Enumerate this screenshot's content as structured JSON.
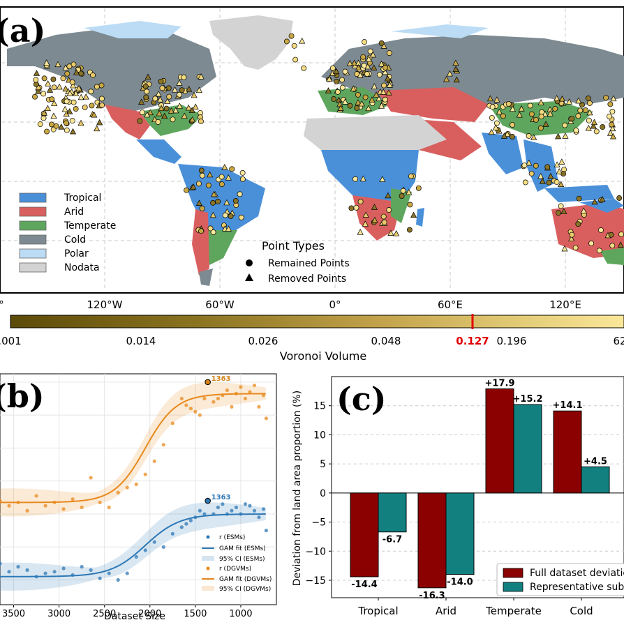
{
  "panel_a": {
    "label": "(a)",
    "legend_classes": [
      {
        "name": "Tropical",
        "color": "#4a90d9"
      },
      {
        "name": "Arid",
        "color": "#d95f5f"
      },
      {
        "name": "Temperate",
        "color": "#5ea65e"
      },
      {
        "name": "Cold",
        "color": "#7d8a91"
      },
      {
        "name": "Polar",
        "color": "#bcdcf5"
      },
      {
        "name": "Nodata",
        "color": "#d3d3d3"
      }
    ],
    "point_types_title": "Point Types",
    "point_types": [
      "Remained Points",
      "Removed Points"
    ],
    "lon_ticks": [
      "°",
      "120°W",
      "60°W",
      "0°",
      "60°E",
      "120°E"
    ],
    "colorbar_ticks": [
      ".001",
      "0.014",
      "0.026",
      "0.048",
      "0.196",
      "62"
    ],
    "colorbar_highlight": "0.127",
    "colorbar_label": "Voronoi Volume"
  },
  "chart_data": [
    {
      "type": "line",
      "panel": "(b)",
      "xlabel": "Dataset Size",
      "x_ticks": [
        3500,
        3000,
        2500,
        2000,
        1500,
        1000
      ],
      "xlim": [
        3650,
        700
      ],
      "series": [
        {
          "name": "r (DGVMs)",
          "color": "#e8891c",
          "points": [
            [
              3650,
              0.28
            ],
            [
              3550,
              0.25
            ],
            [
              3450,
              0.27
            ],
            [
              3350,
              0.22
            ],
            [
              3250,
              0.31
            ],
            [
              3150,
              0.25
            ],
            [
              3050,
              0.27
            ],
            [
              2950,
              0.23
            ],
            [
              2850,
              0.29
            ],
            [
              2750,
              0.24
            ],
            [
              2650,
              0.42
            ],
            [
              2550,
              0.27
            ],
            [
              2450,
              0.24
            ],
            [
              2350,
              0.33
            ],
            [
              2250,
              0.36
            ],
            [
              2150,
              0.38
            ],
            [
              2050,
              0.44
            ],
            [
              1950,
              0.52
            ],
            [
              1850,
              0.62
            ],
            [
              1750,
              0.75
            ],
            [
              1650,
              0.9
            ],
            [
              1600,
              0.86
            ],
            [
              1550,
              0.84
            ],
            [
              1500,
              0.82
            ],
            [
              1450,
              0.8
            ],
            [
              1400,
              0.9
            ],
            [
              1363,
              1.0
            ],
            [
              1300,
              0.88
            ],
            [
              1250,
              0.9
            ],
            [
              1200,
              0.92
            ],
            [
              1150,
              0.95
            ],
            [
              1100,
              0.85
            ],
            [
              1050,
              0.93
            ],
            [
              1000,
              0.97
            ],
            [
              950,
              0.9
            ],
            [
              900,
              0.94
            ],
            [
              850,
              0.98
            ],
            [
              800,
              0.85
            ],
            [
              750,
              0.92
            ],
            [
              720,
              0.78
            ]
          ]
        },
        {
          "name": "r (ESMs)",
          "color": "#2e78b5",
          "points": [
            [
              3650,
              -0.1
            ],
            [
              3550,
              -0.15
            ],
            [
              3450,
              -0.12
            ],
            [
              3350,
              -0.14
            ],
            [
              3250,
              -0.18
            ],
            [
              3150,
              -0.16
            ],
            [
              3050,
              -0.15
            ],
            [
              2950,
              -0.13
            ],
            [
              2850,
              -0.17
            ],
            [
              2750,
              -0.12
            ],
            [
              2650,
              -0.14
            ],
            [
              2550,
              -0.19
            ],
            [
              2450,
              -0.16
            ],
            [
              2350,
              -0.2
            ],
            [
              2250,
              -0.16
            ],
            [
              2150,
              -0.06
            ],
            [
              2050,
              -0.02
            ],
            [
              1950,
              0.03
            ],
            [
              1850,
              0.0
            ],
            [
              1750,
              0.08
            ],
            [
              1650,
              0.12
            ],
            [
              1600,
              0.14
            ],
            [
              1550,
              0.16
            ],
            [
              1500,
              0.18
            ],
            [
              1450,
              0.22
            ],
            [
              1400,
              0.2
            ],
            [
              1363,
              0.28
            ],
            [
              1300,
              0.2
            ],
            [
              1250,
              0.24
            ],
            [
              1200,
              0.26
            ],
            [
              1150,
              0.2
            ],
            [
              1100,
              0.22
            ],
            [
              1050,
              0.24
            ],
            [
              1000,
              0.2
            ],
            [
              950,
              0.26
            ],
            [
              900,
              0.25
            ],
            [
              850,
              0.22
            ],
            [
              800,
              0.18
            ],
            [
              750,
              0.23
            ],
            [
              720,
              0.1
            ]
          ]
        }
      ],
      "fits": [
        {
          "name": "GAM fit (DGVMs)",
          "color": "#e8891c",
          "low": 0.27,
          "high": 0.93,
          "mid": 2050,
          "width": 170
        },
        {
          "name": "GAM fit (ESMs)",
          "color": "#2e78b5",
          "low": -0.18,
          "high": 0.2,
          "mid": 2050,
          "width": 190
        }
      ],
      "ci_labels": [
        "95% CI (ESMs)",
        "95% CI (DGVMs)"
      ],
      "annotations": [
        {
          "text": "1363",
          "x": 1363,
          "series": "DGVMs",
          "color": "#d4821a"
        },
        {
          "text": "1363",
          "x": 1363,
          "series": "ESMs",
          "color": "#2e78b5"
        }
      ],
      "legend": [
        "r (ESMs)",
        "GAM fit (ESMs)",
        "95% CI (ESMs)",
        "r (DGVMs)",
        "GAM fit (DGVMs)",
        "95% CI (DGVMs)"
      ]
    },
    {
      "type": "bar",
      "panel": "(c)",
      "categories": [
        "Tropical",
        "Arid",
        "Temperate",
        "Cold"
      ],
      "ylabel": "Deviation from land area proportion (%)",
      "ylim": [
        -18,
        20
      ],
      "y_ticks": [
        15,
        10,
        5,
        0,
        -5,
        -10,
        -15
      ],
      "y_tick_labels": [
        "15",
        "10",
        "5",
        "0",
        "−5",
        "−10",
        "−15"
      ],
      "series": [
        {
          "name": "Full dataset deviatio",
          "color": "#8b0000",
          "values": [
            -14.4,
            -16.3,
            17.9,
            14.1
          ]
        },
        {
          "name": "Representative sub",
          "color": "#138080",
          "values": [
            -6.7,
            -14.0,
            15.2,
            4.5
          ]
        }
      ],
      "value_labels": [
        [
          "-14.4",
          "-16.3",
          "+17.9",
          "+14.1"
        ],
        [
          "-6.7",
          "-14.0",
          "+15.2",
          "+4.5"
        ]
      ]
    }
  ],
  "panel_b_label": "(b)",
  "panel_c_label": "(c)"
}
